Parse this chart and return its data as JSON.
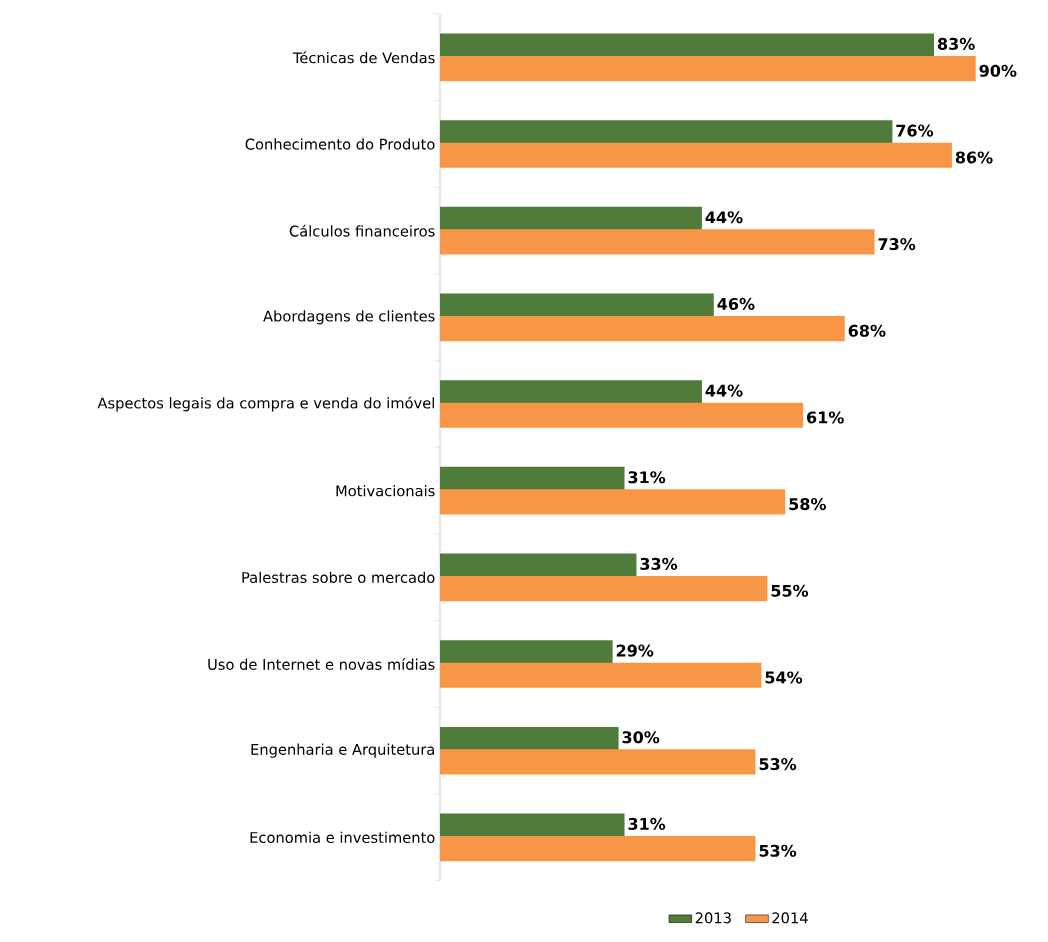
{
  "chart_data": {
    "type": "bar",
    "orientation": "horizontal",
    "categories": [
      "Técnicas de Vendas",
      "Conhecimento do Produto",
      "Cálculos financeiros",
      "Abordagens de clientes",
      "Aspectos legais da compra e venda do imóvel",
      "Motivacionais",
      "Palestras sobre o mercado",
      "Uso de Internet e novas mídias",
      "Engenharia e Arquitetura",
      "Economia e investimento"
    ],
    "series": [
      {
        "name": "2013",
        "color": "#4f7b3b",
        "values": [
          83,
          76,
          44,
          46,
          44,
          31,
          33,
          29,
          30,
          31
        ],
        "value_labels": [
          "83%",
          "76%",
          "44%",
          "46%",
          "44%",
          "31%",
          "33%",
          "29%",
          "30%",
          "31%"
        ]
      },
      {
        "name": "2014",
        "color": "#f79646",
        "values": [
          90,
          86,
          73,
          68,
          61,
          58,
          55,
          54,
          53,
          53
        ],
        "value_labels": [
          "90%",
          "86%",
          "73%",
          "68%",
          "61%",
          "58%",
          "55%",
          "54%",
          "53%",
          "53%"
        ]
      }
    ],
    "legend": "bottom"
  }
}
